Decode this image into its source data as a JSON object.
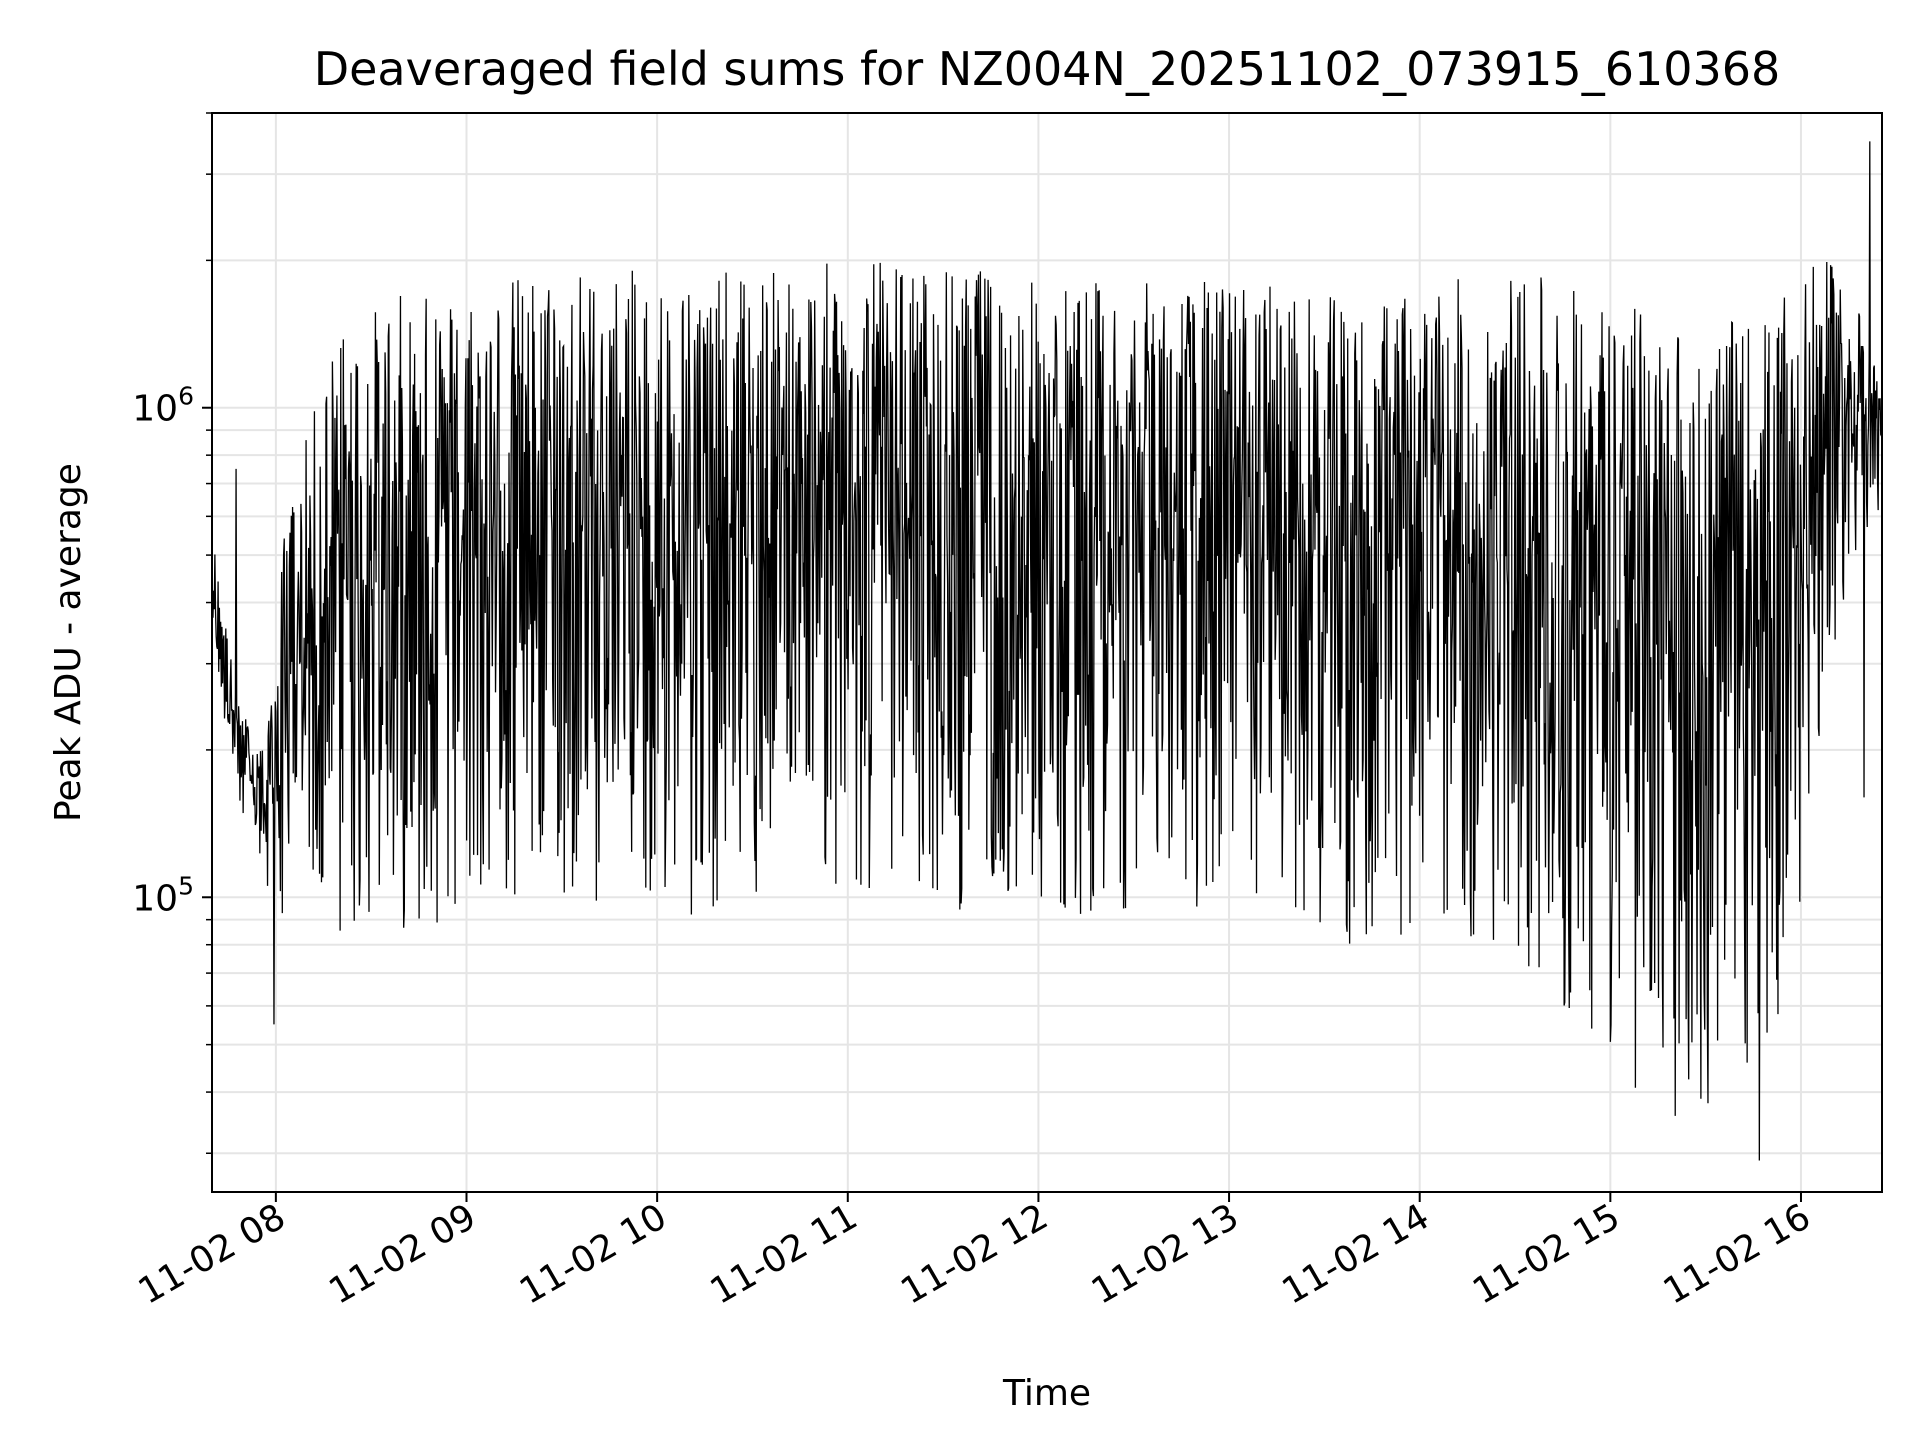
{
  "chart_data": {
    "type": "line",
    "title": "Deaveraged field sums for NZ004N_20251102_073915_610368",
    "xlabel": "Time",
    "ylabel": "Peak ADU - average",
    "yscale": "log",
    "ylim": [
      25000,
      4000000
    ],
    "x_range_hours": [
      7.665,
      16.425
    ],
    "grid": true,
    "line_color": "#000000",
    "grid_color": "#e5e5e5",
    "x_ticks": [
      {
        "hour": 8,
        "label": "11-02 08"
      },
      {
        "hour": 9,
        "label": "11-02 09"
      },
      {
        "hour": 10,
        "label": "11-02 10"
      },
      {
        "hour": 11,
        "label": "11-02 11"
      },
      {
        "hour": 12,
        "label": "11-02 12"
      },
      {
        "hour": 13,
        "label": "11-02 13"
      },
      {
        "hour": 14,
        "label": "11-02 14"
      },
      {
        "hour": 15,
        "label": "11-02 15"
      },
      {
        "hour": 16,
        "label": "11-02 16"
      }
    ],
    "y_ticks": [
      {
        "value": 100000,
        "base": "10",
        "exp": "5"
      },
      {
        "value": 1000000,
        "base": "10",
        "exp": "6"
      }
    ],
    "series_envelope": {
      "description": "Dense noisy time series, sampled envelope of typical upper and lower excursions",
      "hours": [
        7.67,
        7.8,
        7.95,
        8.05,
        8.3,
        8.6,
        9.0,
        9.3,
        9.6,
        10.0,
        10.5,
        11.0,
        11.5,
        12.0,
        12.5,
        13.0,
        13.5,
        13.75,
        14.0,
        14.5,
        14.8,
        15.1,
        15.4,
        15.7,
        15.9,
        16.0,
        16.15,
        16.3,
        16.425
      ],
      "upper": [
        550000,
        250000,
        200000,
        600000,
        1400000,
        1700000,
        1800000,
        1900000,
        1950000,
        1900000,
        1900000,
        2000000,
        1950000,
        1850000,
        1800000,
        1850000,
        1700000,
        1600000,
        1800000,
        1900000,
        1800000,
        1650000,
        1500000,
        1500000,
        1650000,
        1900000,
        2000000,
        1600000,
        1100000
      ],
      "lower": [
        300000,
        150000,
        100000,
        90000,
        80000,
        85000,
        90000,
        95000,
        100000,
        90000,
        95000,
        100000,
        95000,
        90000,
        95000,
        90000,
        85000,
        70000,
        90000,
        75000,
        55000,
        38000,
        35000,
        38000,
        50000,
        100000,
        300000,
        450000,
        650000
      ]
    },
    "notable_points": [
      {
        "hour": 7.99,
        "value": 55000
      },
      {
        "hour": 7.79,
        "value": 750000
      },
      {
        "hour": 15.78,
        "value": 29000
      },
      {
        "hour": 16.36,
        "value": 3500000
      },
      {
        "hour": 16.33,
        "value": 160000
      }
    ]
  }
}
